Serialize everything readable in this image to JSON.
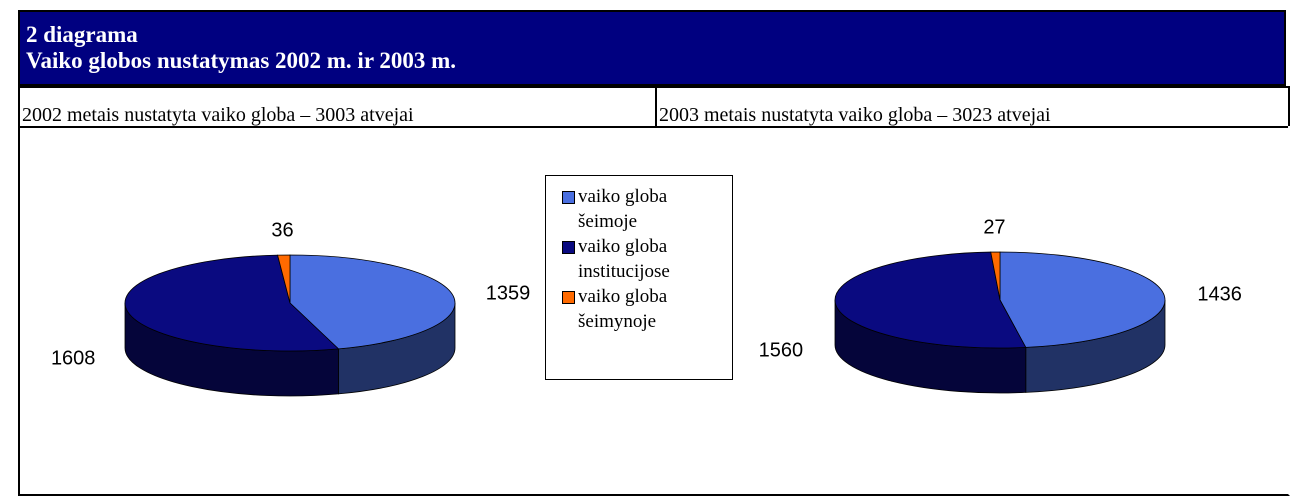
{
  "header": {
    "line1": "2 diagrama",
    "line2": "Vaiko globos nustatymas 2002 m. ir 2003 m."
  },
  "columns": [
    "2002 metais nustatyta vaiko globa – 3003 atvejai",
    "2003 metais nustatyta vaiko globa – 3023 atvejai"
  ],
  "chart_data": [
    {
      "type": "pie",
      "three_d": true,
      "categories": [
        "vaiko globa šeimoje",
        "vaiko globa institucijose",
        "vaiko globa šeimynoje"
      ],
      "values": [
        1359,
        1608,
        36
      ],
      "colors": [
        "#4a6fe0",
        "#0a0a80",
        "#ff6a00"
      ]
    },
    {
      "type": "pie",
      "three_d": true,
      "values": [
        1436,
        1560,
        27
      ],
      "colors": [
        "#4a6fe0",
        "#0a0a80",
        "#ff6a00"
      ]
    }
  ]
}
